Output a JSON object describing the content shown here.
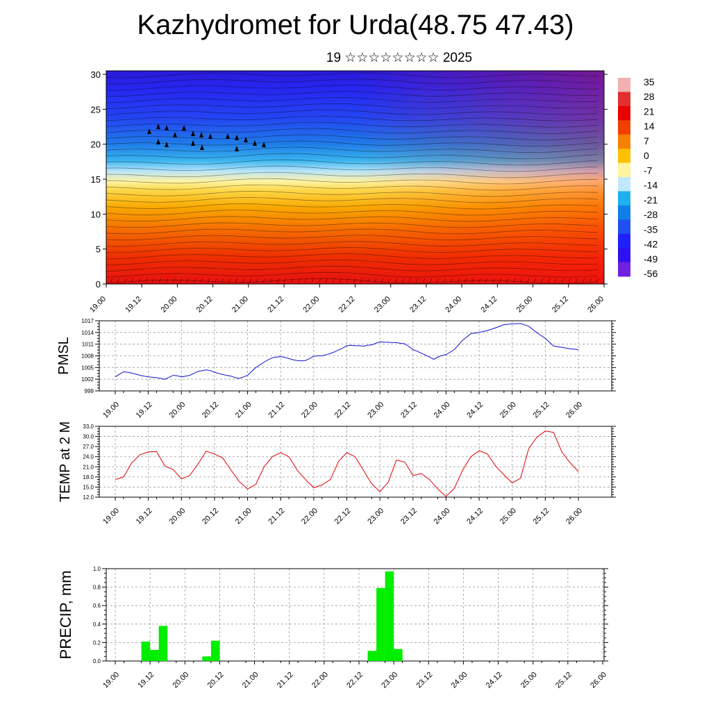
{
  "page": {
    "title": "Kazhydromet for Urda(48.75 47.43)",
    "subtitle": "19 ☆☆☆☆☆☆☆☆ 2025"
  },
  "colors": {
    "pmsl_line": "#1010d0",
    "temp_line": "#e00000",
    "precip_bar": "#00ee00",
    "grid": "#999999"
  },
  "chart_data": [
    {
      "type": "heatmap",
      "title": "Kazhydromet for Urda(48.75 47.43)",
      "subtitle": "19 ☆☆☆☆☆☆☆☆ 2025",
      "x_ticks": [
        "19.00",
        "19.12",
        "20.00",
        "20.12",
        "21.00",
        "21.12",
        "22.00",
        "22.12",
        "23.00",
        "23.12",
        "24.00",
        "24.12",
        "25.00",
        "25.12",
        "26.00"
      ],
      "y_ticks": [
        "0",
        "5",
        "10",
        "15",
        "20",
        "25",
        "30"
      ],
      "ylim": [
        0,
        30.5
      ],
      "colorbar_labels": [
        "35",
        "28",
        "21",
        "14",
        "7",
        "0",
        "-7",
        "-14",
        "-21",
        "-28",
        "-35",
        "-42",
        "-49",
        "-56"
      ],
      "colorbar_colors": [
        "#f2b0b0",
        "#e03030",
        "#e80000",
        "#f04000",
        "#f68000",
        "#fcc000",
        "#fff5a0",
        "#c0e8ff",
        "#20b0f0",
        "#1080e8",
        "#2050f0",
        "#2020ff",
        "#3010f0",
        "#7020e0"
      ],
      "description_note": ""
    },
    {
      "type": "line",
      "ylabel": "PMSL",
      "ylim": [
        999,
        1017
      ],
      "y_ticks": [
        "999",
        "1002",
        "1005",
        "1008",
        "1011",
        "1014",
        "1017"
      ],
      "x_ticks": [
        "19.00",
        "19.12",
        "20.00",
        "20.12",
        "21.00",
        "21.12",
        "22.00",
        "22.12",
        "23.00",
        "23.12",
        "24.00",
        "24.12",
        "25.00",
        "25.12",
        "26.00"
      ],
      "x": [
        0,
        1.5,
        3,
        4.5,
        6,
        7.5,
        9,
        10.5,
        12,
        13.5,
        15,
        16.5,
        18,
        19.5,
        21,
        22.5,
        24,
        25.5,
        27,
        28.5,
        30,
        31.5,
        33,
        34.5,
        36,
        37.5,
        39,
        40.5,
        42,
        43.5,
        45,
        46.5,
        48,
        49.5,
        51,
        52.5,
        54,
        55.5,
        57,
        58.5,
        60,
        61.5,
        63,
        64.5,
        66,
        67.5,
        69,
        70.5,
        72,
        73.5,
        75,
        76.5,
        78,
        79.5,
        81,
        82.5,
        84,
        85.5,
        87,
        88.5,
        90,
        91.5,
        93,
        94.5,
        96,
        97.5,
        99,
        100.5,
        102,
        103.5,
        105,
        106.5,
        108,
        109.5,
        111,
        112.5,
        114,
        115.5,
        118,
        120,
        123,
        126,
        129,
        132,
        135,
        138,
        141,
        144,
        147,
        150,
        153,
        156,
        159,
        162,
        165,
        168
      ],
      "values": [
        1002.6,
        1003.3,
        1003.9,
        1003.8,
        1003.6,
        1003.3,
        1003.0,
        1002.8,
        1002.6,
        1002.5,
        1002.4,
        1002.2,
        1002.0,
        1002.5,
        1003.0,
        1002.9,
        1002.6,
        1002.8,
        1003.0,
        1003.5,
        1004.0,
        1004.2,
        1004.4,
        1004.2,
        1003.8,
        1003.5,
        1003.2,
        1003.0,
        1002.8,
        1002.4,
        1002.2,
        1002.6,
        1003.0,
        1004.0,
        1005.0,
        1005.7,
        1006.4,
        1007.0,
        1007.5,
        1007.7,
        1007.8,
        1007.6,
        1007.3,
        1007.0,
        1006.8,
        1006.7,
        1006.8,
        1007.3,
        1007.9,
        1008.0,
        1008.0,
        1008.3,
        1008.6,
        1009.0,
        1009.5,
        1010.0,
        1010.6,
        1010.7,
        1010.6,
        1010.6,
        1010.5,
        1010.7,
        1010.8,
        1011.2,
        1011.6,
        1011.5,
        1011.5,
        1011.4,
        1011.4,
        1011.2,
        1011.1,
        1010.4,
        1009.6,
        1009.2,
        1008.7,
        1008.2,
        1007.7,
        1007.1,
        1008.0,
        1008.3,
        1009.6,
        1012.0,
        1013.7,
        1014.0,
        1014.5,
        1015.2,
        1016.0,
        1016.2,
        1016.3,
        1015.6,
        1013.9,
        1012.5,
        1010.5,
        1010.2,
        1009.8,
        1009.6
      ],
      "series": [
        {
          "name": "",
          "color": "#1010d0"
        }
      ]
    },
    {
      "type": "line",
      "ylabel": "TEMP at 2 M",
      "ylim": [
        12,
        33
      ],
      "y_ticks": [
        "12.0",
        "15.0",
        "18.0",
        "21.0",
        "24.0",
        "27.0",
        "30.0",
        "33.0"
      ],
      "x_ticks": [
        "19.00",
        "19.12",
        "20.00",
        "20.12",
        "21.00",
        "21.12",
        "22.00",
        "22.12",
        "23.00",
        "23.12",
        "24.00",
        "24.12",
        "25.00",
        "25.12",
        "26.00"
      ],
      "x": [
        0,
        3,
        6,
        9,
        12,
        15,
        18,
        21,
        24,
        27,
        30,
        33,
        36,
        39,
        42,
        45,
        48,
        51,
        54,
        57,
        60,
        63,
        66,
        69,
        72,
        75,
        78,
        81,
        84,
        87,
        90,
        93,
        96,
        99,
        102,
        105,
        108,
        111,
        114,
        117,
        120,
        123,
        126,
        129,
        132,
        135,
        138,
        141,
        144,
        147,
        150,
        153,
        156,
        159,
        162,
        165,
        168
      ],
      "values": [
        17.2,
        18.0,
        22.2,
        24.6,
        25.4,
        25.5,
        21.2,
        20.2,
        17.4,
        18.4,
        21.8,
        25.6,
        24.8,
        23.6,
        20.0,
        16.6,
        14.4,
        15.8,
        21.0,
        24.0,
        25.2,
        24.0,
        20.0,
        17.2,
        14.8,
        15.6,
        17.2,
        22.6,
        25.2,
        24.0,
        20.0,
        16.0,
        13.6,
        16.4,
        23.0,
        22.4,
        18.4,
        19.0,
        17.2,
        14.4,
        12.2,
        14.6,
        20.0,
        24.0,
        25.8,
        24.8,
        21.2,
        18.6,
        16.2,
        17.6,
        26.4,
        29.8,
        31.6,
        31.2,
        25.4,
        22.2,
        19.6
      ],
      "series": [
        {
          "name": "",
          "color": "#e00000"
        }
      ]
    },
    {
      "type": "bar",
      "ylabel": "PRECIP, mm",
      "ylim": [
        0,
        1.0
      ],
      "y_ticks": [
        "0.0",
        "0.2",
        "0.4",
        "0.6",
        "0.8",
        "1.0"
      ],
      "x_ticks": [
        "19.00",
        "19.12",
        "20.00",
        "20.12",
        "21.00",
        "21.12",
        "22.00",
        "22.12",
        "23.00",
        "23.12",
        "24.00",
        "24.12",
        "25.00",
        "25.12",
        "26.00"
      ],
      "bars": [
        {
          "start": 9,
          "end": 12,
          "value": 0.21
        },
        {
          "start": 12,
          "end": 15,
          "value": 0.12
        },
        {
          "start": 15,
          "end": 18,
          "value": 0.38
        },
        {
          "start": 30,
          "end": 33,
          "value": 0.05
        },
        {
          "start": 33,
          "end": 36,
          "value": 0.22
        },
        {
          "start": 87,
          "end": 90,
          "value": 0.11
        },
        {
          "start": 90,
          "end": 93,
          "value": 0.79
        },
        {
          "start": 93,
          "end": 96,
          "value": 0.97
        },
        {
          "start": 96,
          "end": 99,
          "value": 0.13
        }
      ],
      "series": [
        {
          "name": "",
          "color": "#00ee00"
        }
      ]
    }
  ]
}
